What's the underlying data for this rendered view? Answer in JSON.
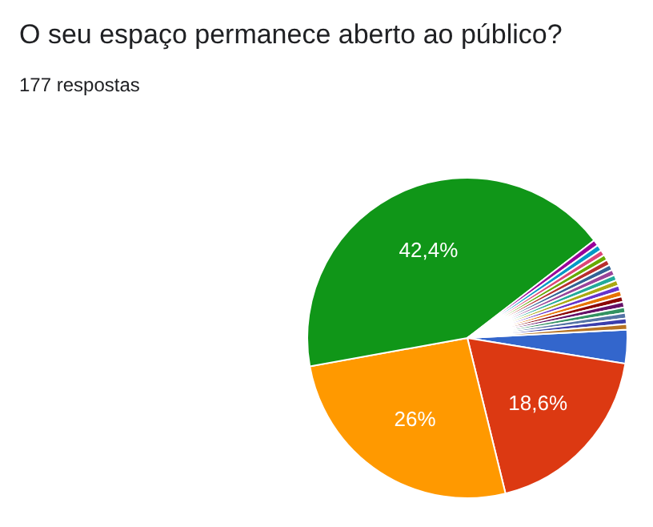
{
  "chart_data": {
    "type": "pie",
    "title": "O seu espaço permanece aberto ao público?",
    "subtitle": "177 respostas",
    "categories": [
      null,
      null,
      null,
      null,
      null,
      null,
      null,
      null,
      null,
      null,
      null,
      null,
      null,
      null,
      null,
      null,
      null,
      null,
      null,
      null,
      null
    ],
    "values": [
      3.4,
      18.6,
      26,
      42.4,
      0.6,
      0.6,
      0.56,
      0.56,
      0.56,
      0.56,
      0.56,
      0.56,
      0.56,
      0.56,
      0.56,
      0.56,
      0.56,
      0.56,
      0.56,
      0.56,
      0.56
    ],
    "value_labels": [
      null,
      "18,6%",
      "26%",
      "42,4%",
      null,
      null,
      null,
      null,
      null,
      null,
      null,
      null,
      null,
      null,
      null,
      null,
      null,
      null,
      null,
      null,
      null
    ],
    "colors": [
      "#3366cc",
      "#dc3912",
      "#ff9900",
      "#109618",
      "#990099",
      "#0099c6",
      "#dd4477",
      "#66aa00",
      "#b82e2e",
      "#316395",
      "#994499",
      "#22aa99",
      "#aaaa11",
      "#6633cc",
      "#e67300",
      "#8b0707",
      "#651067",
      "#329262",
      "#5574a6",
      "#3b3eac",
      "#b77322"
    ]
  }
}
